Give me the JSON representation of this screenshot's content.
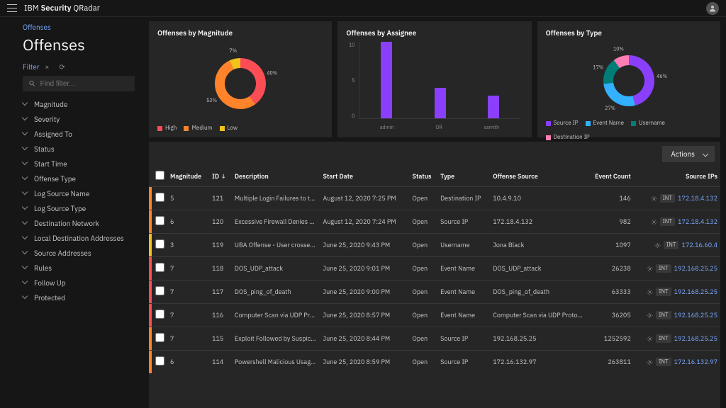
{
  "brand": {
    "prefix": "IBM",
    "bold": "Security",
    "suffix": "QRadar"
  },
  "breadcrumb": "Offenses",
  "pageTitle": "Offenses",
  "filterLabel": "Filter",
  "searchPlaceholder": "Find filter...",
  "facets": [
    "Magnitude",
    "Severity",
    "Assigned To",
    "Status",
    "Start Time",
    "Offense Type",
    "Log Source Name",
    "Log Source Type",
    "Destination Network",
    "Local Destination Addresses",
    "Source Addresses",
    "Rules",
    "Follow Up",
    "Protected"
  ],
  "charts": {
    "magnitude": {
      "title": "Offenses by Magnitude",
      "type": "donut",
      "slices": [
        {
          "label": "High",
          "pct": 40,
          "color": "#fa4d56"
        },
        {
          "label": "Medium",
          "pct": 53,
          "color": "#ff832b"
        },
        {
          "label": "Low",
          "pct": 7,
          "color": "#f1c21b"
        }
      ],
      "labelHigh": "40%",
      "labelMed": "53%",
      "labelLow": "7%",
      "legend": [
        {
          "label": "High",
          "color": "#fa4d56"
        },
        {
          "label": "Medium",
          "color": "#ff832b"
        },
        {
          "label": "Low",
          "color": "#f1c21b"
        }
      ]
    },
    "assignee": {
      "title": "Offenses by Assignee",
      "type": "bar",
      "ymax": 10,
      "yticks": [
        "10",
        "5",
        "0"
      ],
      "bars": [
        {
          "label": "admin",
          "value": 10
        },
        {
          "label": "OR",
          "value": 4
        },
        {
          "label": "asmith",
          "value": 3
        }
      ],
      "barColor": "#8a3ffc"
    },
    "type": {
      "title": "Offenses by Type",
      "type": "donut",
      "slices": [
        {
          "label": "Source IP",
          "pct": 46,
          "color": "#8a3ffc"
        },
        {
          "label": "Event Name",
          "pct": 27,
          "color": "#33b1ff"
        },
        {
          "label": "Username",
          "pct": 17,
          "color": "#007d79"
        },
        {
          "label": "Destination IP",
          "pct": 10,
          "color": "#ff7eb6"
        }
      ],
      "labelA": "46%",
      "labelB": "27%",
      "labelC": "17%",
      "labelD": "10%",
      "legend": [
        {
          "label": "Source IP",
          "color": "#8a3ffc"
        },
        {
          "label": "Event Name",
          "color": "#33b1ff"
        },
        {
          "label": "Username",
          "color": "#007d79"
        },
        {
          "label": "Destination IP",
          "color": "#ff7eb6"
        }
      ]
    }
  },
  "actionsLabel": "Actions",
  "table": {
    "columns": [
      "",
      "",
      "Magnitude",
      "ID",
      "Description",
      "Start Date",
      "Status",
      "Type",
      "Offense Source",
      "Event Count",
      "Source IPs"
    ],
    "rows": [
      {
        "sev": "#ff832b",
        "mag": "5",
        "id": "121",
        "desc": "Multiple Login Failures to the S...",
        "date": "August 12, 2020 7:25 PM",
        "status": "Open",
        "type": "Destination IP",
        "src": "10.4.9.10",
        "count": "146",
        "ipBadge": "INT",
        "ip": "172.18.4.132"
      },
      {
        "sev": "#ff832b",
        "mag": "6",
        "id": "120",
        "desc": "Excessive Firewall Denies Bet...",
        "date": "August 12, 2020 7:24 PM",
        "status": "Open",
        "type": "Source IP",
        "src": "172.18.4.132",
        "count": "982",
        "ipBadge": "INT",
        "ip": "172.18.4.132"
      },
      {
        "sev": "#f1c21b",
        "mag": "3",
        "id": "119",
        "desc": "UBA Offense - User crossed ris...",
        "date": "June 25, 2020 9:43 PM",
        "status": "Open",
        "type": "Username",
        "src": "Jona Black",
        "count": "1097",
        "ipBadge": "INT",
        "ip": "172.16.60.4"
      },
      {
        "sev": "#fa4d56",
        "mag": "7",
        "id": "118",
        "desc": "DOS_UDP_attack",
        "date": "June 25, 2020 9:01 PM",
        "status": "Open",
        "type": "Event Name",
        "src": "DOS_UDP_attack",
        "count": "26238",
        "ipBadge": "INT",
        "ip": "192.168.25.25"
      },
      {
        "sev": "#fa4d56",
        "mag": "7",
        "id": "117",
        "desc": "DOS_ping_of_death",
        "date": "June 25, 2020 9:00 PM",
        "status": "Open",
        "type": "Event Name",
        "src": "DOS_ping_of_death",
        "count": "63333",
        "ipBadge": "INT",
        "ip": "192.168.25.25"
      },
      {
        "sev": "#fa4d56",
        "mag": "7",
        "id": "116",
        "desc": "Computer Scan via UDP Protoc...",
        "date": "June 25, 2020 8:57 PM",
        "status": "Open",
        "type": "Event Name",
        "src": "Computer Scan via UDP Protocol",
        "count": "36205",
        "ipBadge": "INT",
        "ip": "192.168.25.25"
      },
      {
        "sev": "#ff832b",
        "mag": "7",
        "id": "115",
        "desc": "Exploit Followed by Suspiciou...",
        "date": "June 25, 2020 8:44 PM",
        "status": "Open",
        "type": "Source IP",
        "src": "192.168.25.25",
        "count": "1252592",
        "ipBadge": "INT",
        "ip": "192.168.25.25"
      },
      {
        "sev": "#ff832b",
        "mag": "6",
        "id": "114",
        "desc": "Powershell Malicious Usage D...",
        "date": "June 25, 2020 8:59 PM",
        "status": "Open",
        "type": "Source IP",
        "src": "172.16.132.97",
        "count": "263811",
        "ipBadge": "INT",
        "ip": "172.16.132.97"
      }
    ]
  }
}
